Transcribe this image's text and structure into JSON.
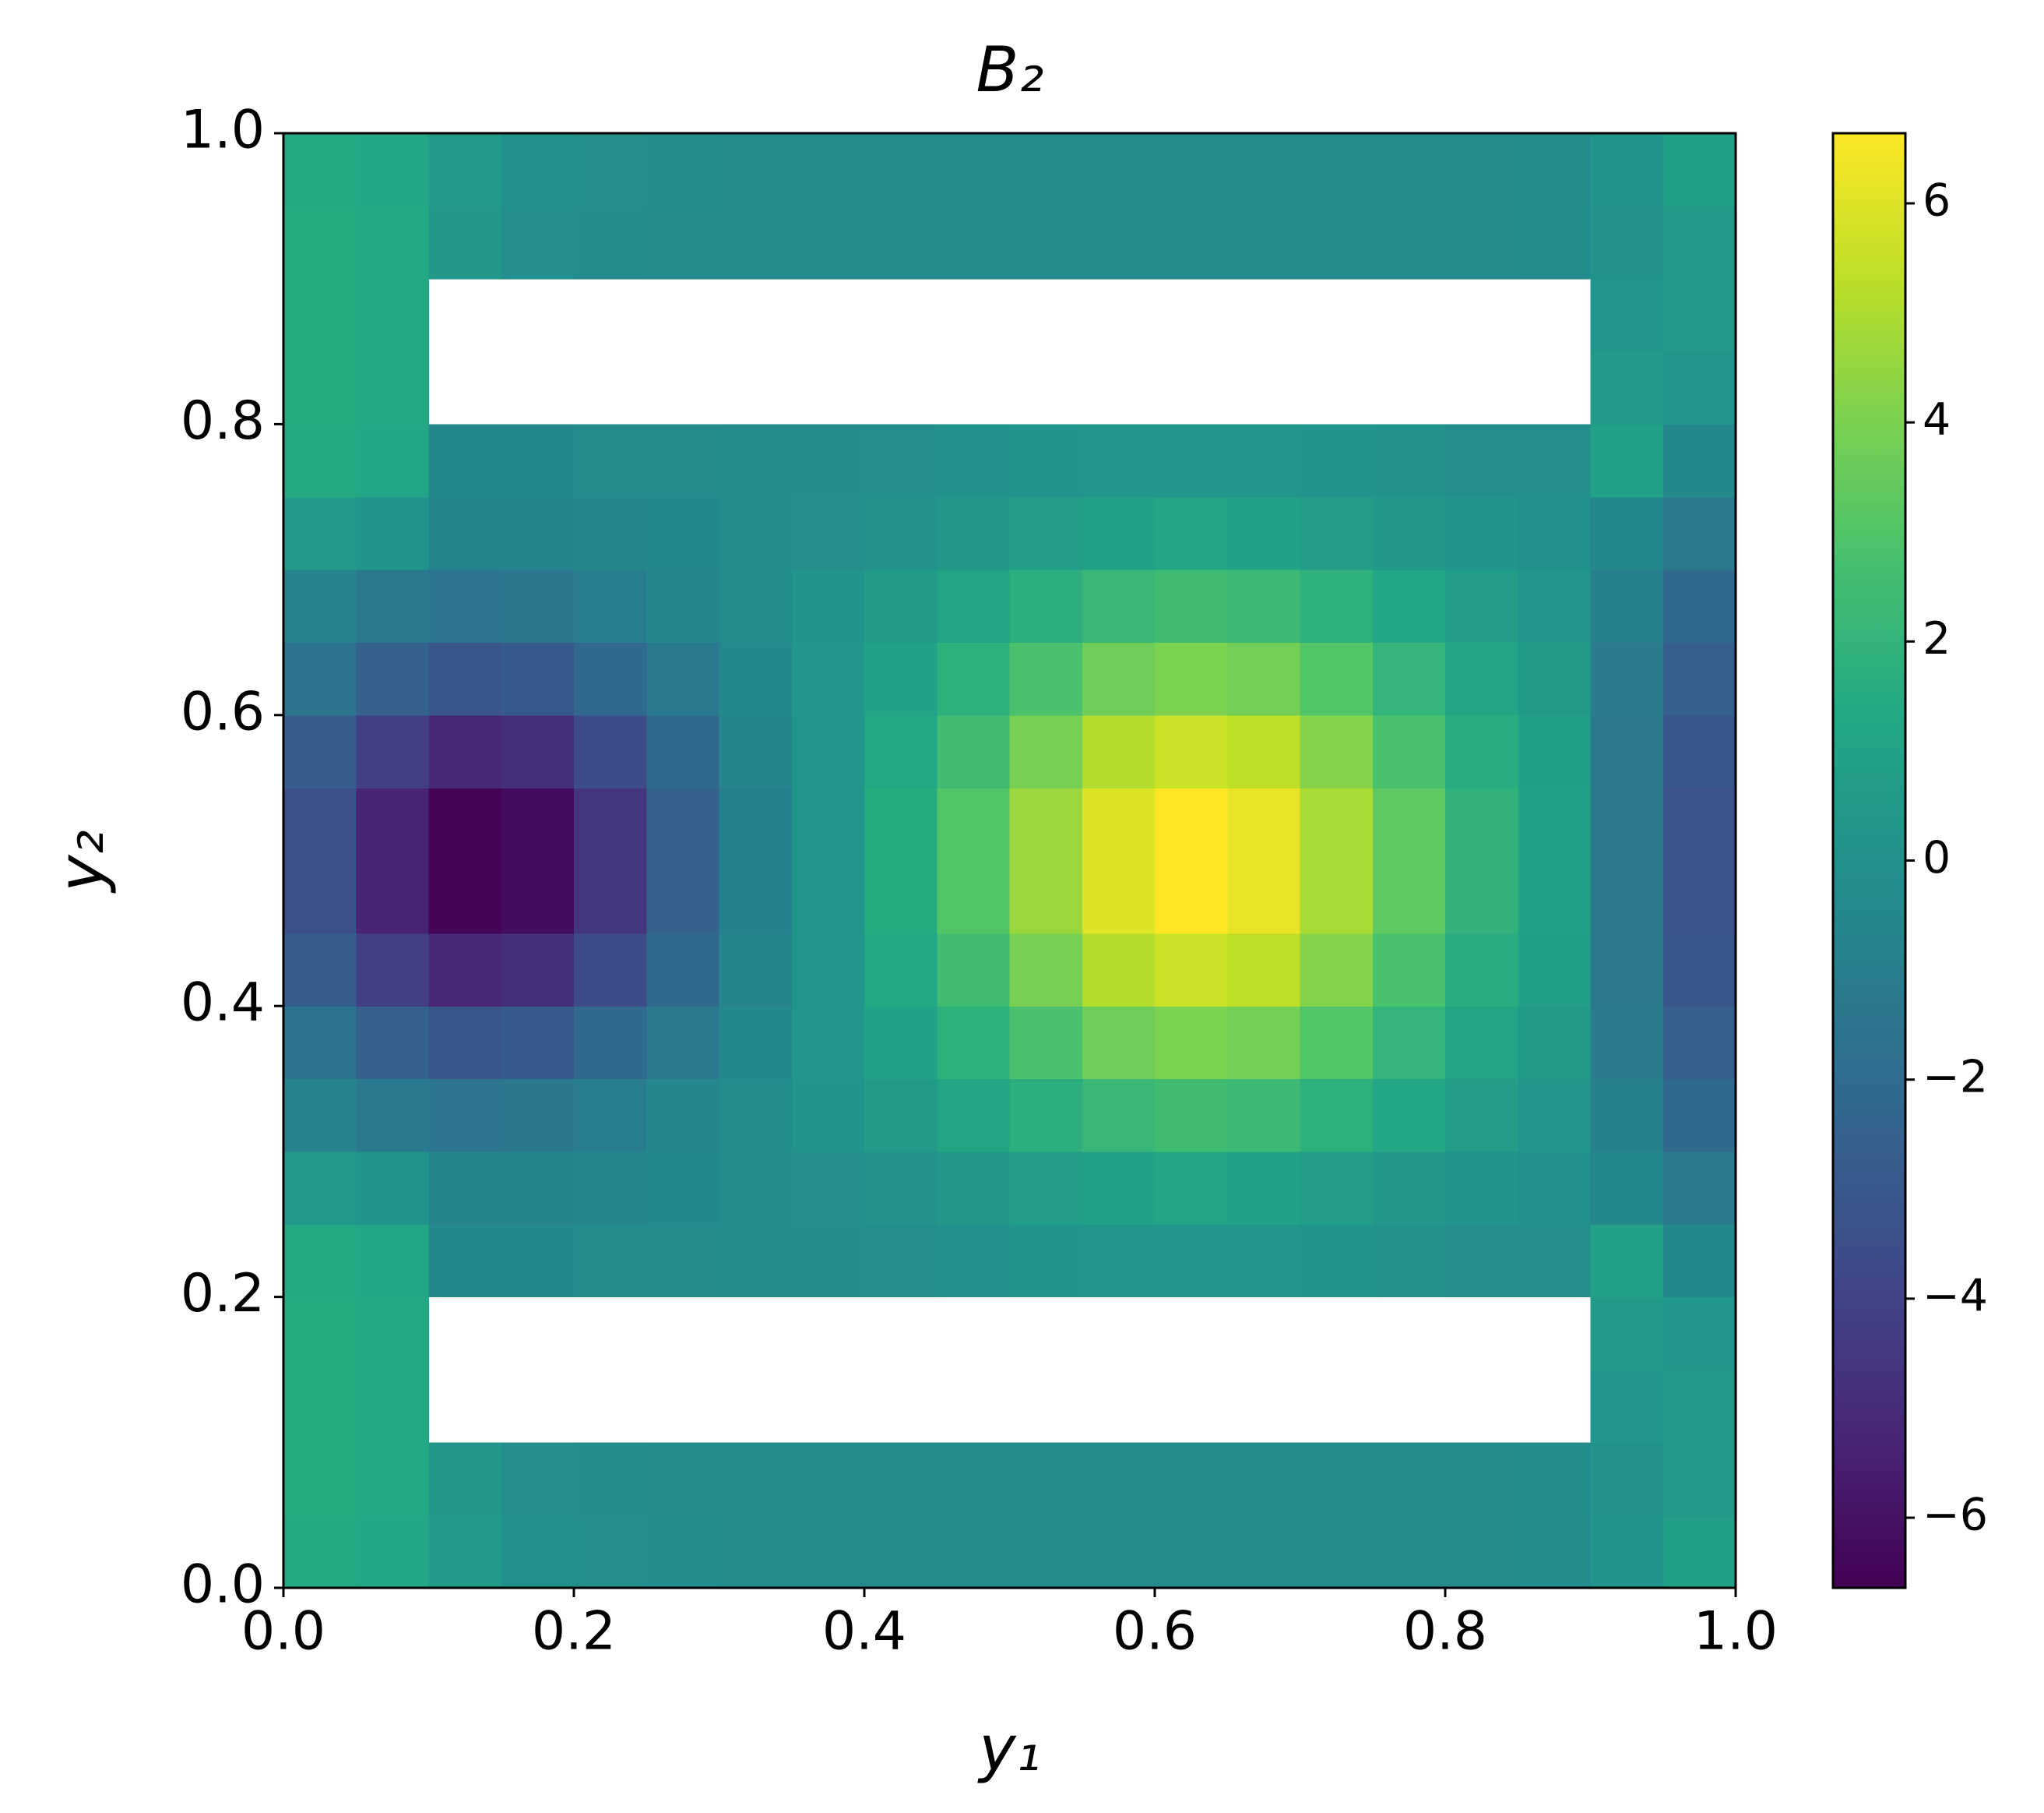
{
  "chart_data": {
    "type": "heatmap",
    "title": "B₂",
    "x_label": "y₁",
    "y_label": "y₂",
    "colormap": "viridis",
    "x": [
      0.025,
      0.075,
      0.125,
      0.175,
      0.225,
      0.275,
      0.325,
      0.375,
      0.425,
      0.475,
      0.525,
      0.575,
      0.625,
      0.675,
      0.725,
      0.775,
      0.825,
      0.875,
      0.925,
      0.975
    ],
    "y": [
      0.025,
      0.075,
      0.125,
      0.175,
      0.225,
      0.275,
      0.325,
      0.375,
      0.425,
      0.475,
      0.525,
      0.575,
      0.625,
      0.675,
      0.725,
      0.775,
      0.825,
      0.875,
      0.925,
      0.975
    ],
    "values": [
      [
        1.4,
        1.2,
        0.5,
        0.0,
        -0.1,
        -0.2,
        -0.3,
        -0.3,
        -0.3,
        -0.3,
        -0.3,
        -0.3,
        -0.3,
        -0.3,
        -0.3,
        -0.3,
        -0.3,
        -0.2,
        0.2,
        0.8
      ],
      [
        1.5,
        1.3,
        0.4,
        -0.1,
        -0.2,
        -0.3,
        -0.3,
        -0.3,
        -0.3,
        -0.3,
        -0.3,
        -0.3,
        -0.3,
        -0.3,
        -0.3,
        -0.3,
        -0.3,
        -0.2,
        0.1,
        0.5
      ],
      [
        1.5,
        1.3,
        null,
        null,
        null,
        null,
        null,
        null,
        null,
        null,
        null,
        null,
        null,
        null,
        null,
        null,
        null,
        null,
        0.3,
        0.5
      ],
      [
        1.5,
        1.3,
        null,
        null,
        null,
        null,
        null,
        null,
        null,
        null,
        null,
        null,
        null,
        null,
        null,
        null,
        null,
        null,
        0.5,
        0.3
      ],
      [
        1.4,
        1.2,
        -0.4,
        -0.4,
        -0.3,
        -0.3,
        -0.2,
        -0.2,
        -0.1,
        0.0,
        0.2,
        0.3,
        0.3,
        0.3,
        0.2,
        0.1,
        -0.1,
        -0.1,
        1.0,
        -0.5
      ],
      [
        0.5,
        0.2,
        -0.7,
        -0.7,
        -0.6,
        -0.4,
        -0.2,
        -0.1,
        0.1,
        0.4,
        0.7,
        0.9,
        1.1,
        1.0,
        0.7,
        0.4,
        0.2,
        0.0,
        -0.5,
        -1.2
      ],
      [
        -0.8,
        -1.2,
        -1.5,
        -1.4,
        -1.0,
        -0.6,
        -0.2,
        0.2,
        0.6,
        1.1,
        1.7,
        2.2,
        2.5,
        2.3,
        1.8,
        1.2,
        0.7,
        0.3,
        -0.9,
        -2.0
      ],
      [
        -1.6,
        -2.5,
        -3.1,
        -2.9,
        -2.2,
        -1.2,
        -0.4,
        0.3,
        1.0,
        1.8,
        2.8,
        3.7,
        4.0,
        3.8,
        3.0,
        2.0,
        1.1,
        0.6,
        -1.1,
        -2.6
      ],
      [
        -2.7,
        -4.2,
        -5.1,
        -4.8,
        -3.6,
        -2.0,
        -0.7,
        0.3,
        1.3,
        2.5,
        3.9,
        5.1,
        5.6,
        5.3,
        4.2,
        2.8,
        1.6,
        0.8,
        -1.3,
        -3.1
      ],
      [
        -3.4,
        -5.3,
        -6.5,
        -6.2,
        -4.6,
        -2.5,
        -0.9,
        0.3,
        1.5,
        3.0,
        4.6,
        6.0,
        6.7,
        6.2,
        4.9,
        3.3,
        1.9,
        0.9,
        -1.3,
        -3.3
      ],
      [
        -3.4,
        -5.3,
        -6.5,
        -6.2,
        -4.6,
        -2.5,
        -0.9,
        0.3,
        1.5,
        3.0,
        4.6,
        6.0,
        6.7,
        6.2,
        4.9,
        3.3,
        1.9,
        0.9,
        -1.3,
        -3.3
      ],
      [
        -2.7,
        -4.2,
        -5.1,
        -4.8,
        -3.6,
        -2.0,
        -0.7,
        0.3,
        1.3,
        2.5,
        3.9,
        5.1,
        5.6,
        5.3,
        4.2,
        2.8,
        1.6,
        0.8,
        -1.3,
        -3.1
      ],
      [
        -1.6,
        -2.5,
        -3.1,
        -2.9,
        -2.2,
        -1.2,
        -0.4,
        0.3,
        1.0,
        1.8,
        2.8,
        3.7,
        4.0,
        3.8,
        3.0,
        2.0,
        1.1,
        0.6,
        -1.1,
        -2.6
      ],
      [
        -0.8,
        -1.2,
        -1.5,
        -1.4,
        -1.0,
        -0.6,
        -0.2,
        0.2,
        0.6,
        1.1,
        1.7,
        2.2,
        2.5,
        2.3,
        1.8,
        1.2,
        0.7,
        0.3,
        -0.9,
        -2.0
      ],
      [
        0.5,
        0.2,
        -0.7,
        -0.7,
        -0.6,
        -0.4,
        -0.2,
        -0.1,
        0.1,
        0.4,
        0.7,
        0.9,
        1.1,
        1.0,
        0.7,
        0.4,
        0.2,
        0.0,
        -0.5,
        -1.2
      ],
      [
        1.4,
        1.2,
        -0.4,
        -0.4,
        -0.3,
        -0.3,
        -0.2,
        -0.2,
        -0.1,
        0.0,
        0.2,
        0.3,
        0.3,
        0.3,
        0.2,
        0.1,
        -0.1,
        -0.1,
        1.0,
        -0.5
      ],
      [
        1.5,
        1.3,
        null,
        null,
        null,
        null,
        null,
        null,
        null,
        null,
        null,
        null,
        null,
        null,
        null,
        null,
        null,
        null,
        0.5,
        0.3
      ],
      [
        1.5,
        1.3,
        null,
        null,
        null,
        null,
        null,
        null,
        null,
        null,
        null,
        null,
        null,
        null,
        null,
        null,
        null,
        null,
        0.3,
        0.5
      ],
      [
        1.5,
        1.3,
        0.4,
        -0.1,
        -0.2,
        -0.3,
        -0.3,
        -0.3,
        -0.3,
        -0.3,
        -0.3,
        -0.3,
        -0.3,
        -0.3,
        -0.3,
        -0.3,
        -0.3,
        -0.2,
        0.1,
        0.5
      ],
      [
        1.4,
        1.2,
        0.5,
        0.0,
        -0.1,
        -0.2,
        -0.3,
        -0.3,
        -0.3,
        -0.3,
        -0.3,
        -0.3,
        -0.3,
        -0.3,
        -0.3,
        -0.3,
        -0.3,
        -0.2,
        0.2,
        0.8
      ]
    ],
    "xlim": [
      0,
      1
    ],
    "ylim": [
      0,
      1
    ],
    "xticks": [
      {
        "value": 0,
        "label": "0.0"
      },
      0.2,
      0.4,
      0.6,
      0.8,
      {
        "value": 1,
        "label": "1.0"
      }
    ],
    "yticks": [
      {
        "value": 0,
        "label": "0.0"
      },
      0.2,
      0.4,
      0.6,
      0.8,
      {
        "value": 1,
        "label": "1.0"
      }
    ],
    "clim": [
      -6.64,
      6.64
    ],
    "cticks": [
      {
        "value": -6,
        "label": "−6"
      },
      {
        "value": -4,
        "label": "−4"
      },
      {
        "value": -2,
        "label": "−2"
      },
      0,
      2,
      4,
      6
    ]
  }
}
